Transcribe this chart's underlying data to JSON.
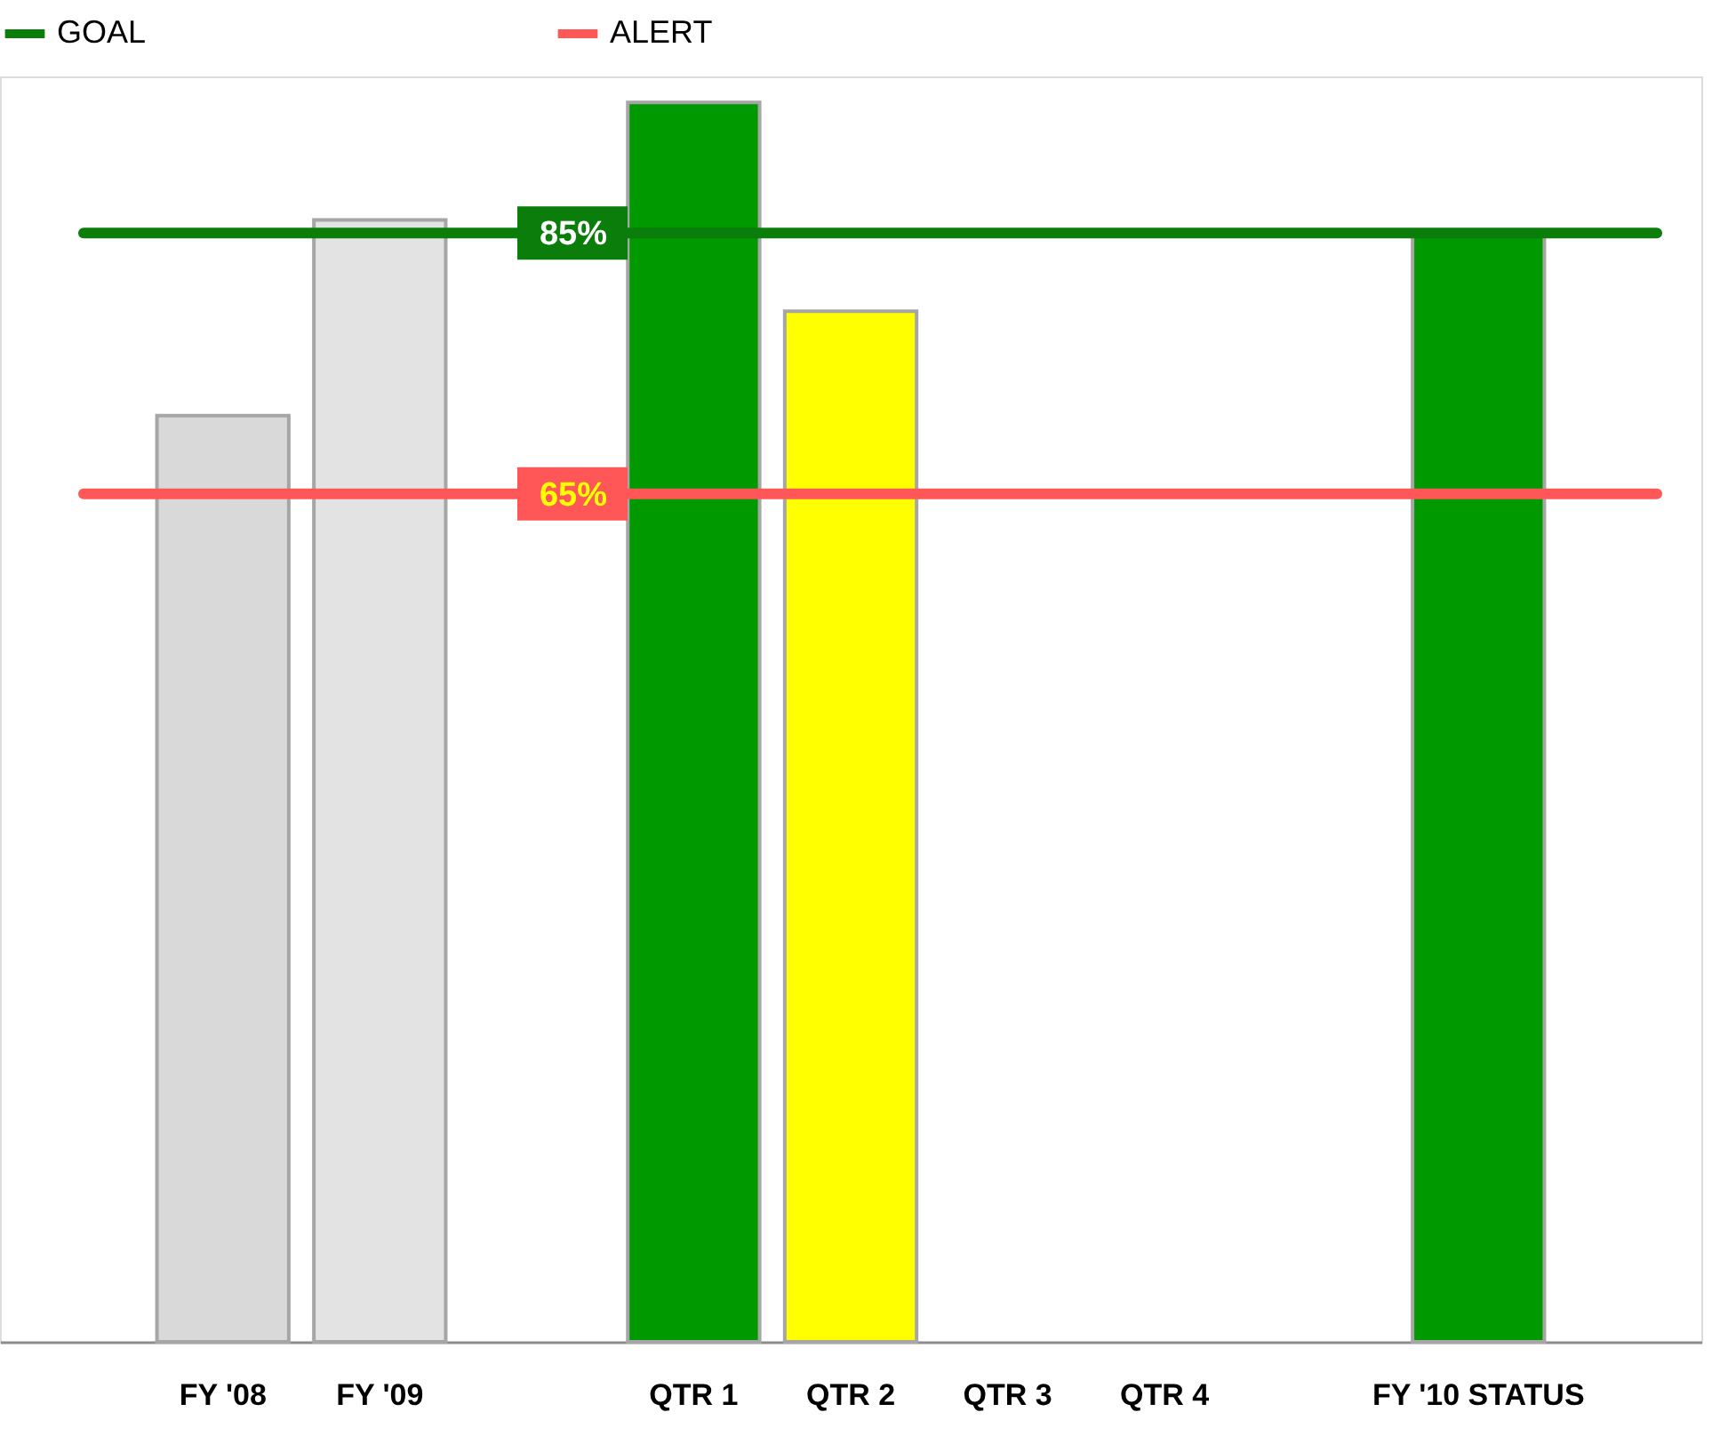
{
  "chart_data": {
    "type": "bar",
    "categories": [
      "FY '08",
      "FY '09",
      null,
      "QTR 1",
      "QTR 2",
      "QTR 3",
      "QTR 4",
      null,
      "FY '10 STATUS"
    ],
    "values": [
      71,
      86,
      null,
      95,
      79,
      null,
      null,
      null,
      85
    ],
    "colors": [
      "#d9d9d9",
      "#e3e3e3",
      "#ffffff",
      "#009900",
      "#ffff00",
      "#ffffff",
      "#ffffff",
      "#ffffff",
      "#009900"
    ],
    "ylim": [
      0,
      97
    ],
    "yticks": [
      {
        "value": 85,
        "label": "85%"
      },
      {
        "value": 65,
        "label": "65%"
      }
    ],
    "grid": false,
    "legend": "top",
    "ref_lines": [
      {
        "axis": "y",
        "value": 85,
        "label": "GOAL",
        "color": "#0a7d0a"
      },
      {
        "axis": "y",
        "value": 65,
        "label": "ALERT",
        "color": "#ff5757"
      }
    ]
  }
}
